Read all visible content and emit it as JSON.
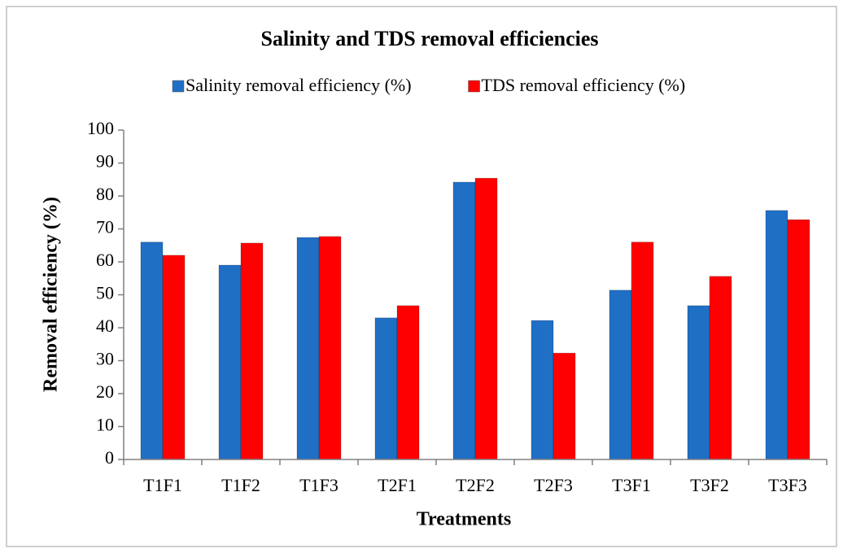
{
  "chart_data": {
    "type": "bar",
    "title": "Salinity and TDS removal efficiencies",
    "x_label": "Treatments",
    "y_label": "Removal  efficiency  (%)",
    "categories": [
      "T1F1",
      "T1F2",
      "T1F3",
      "T2F1",
      "T2F2",
      "T2F3",
      "T3F1",
      "T3F2",
      "T3F3"
    ],
    "series": [
      {
        "name": "Salinity removal efficiency (%)",
        "color": "#1f6fc5",
        "values": [
          66,
          59,
          67.4,
          43,
          84.2,
          42.2,
          51.4,
          46.7,
          75.6
        ]
      },
      {
        "name": "TDS removal efficiency (%)",
        "color": "#ff0000",
        "values": [
          62,
          65.7,
          67.7,
          46.7,
          85.4,
          32.3,
          66,
          55.6,
          72.8
        ]
      }
    ],
    "ylim": [
      0,
      100
    ],
    "yticks": [
      0,
      10,
      20,
      30,
      40,
      50,
      60,
      70,
      80,
      90,
      100
    ],
    "grid": false,
    "legend": "top"
  }
}
